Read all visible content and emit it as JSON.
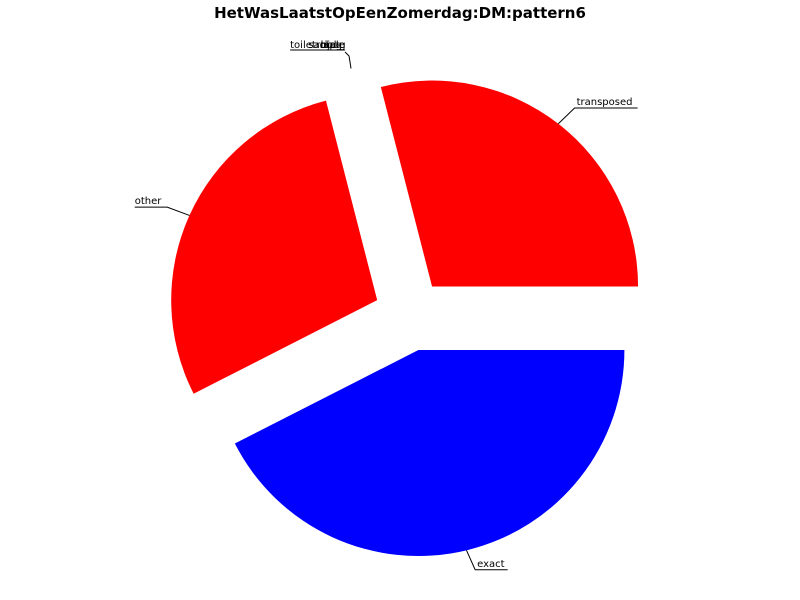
{
  "chart_data": {
    "type": "pie",
    "title": "HetWasLaatstOpEenZomerdag:DM:pattern6",
    "slices": [
      {
        "label": "exact",
        "value": 42.5,
        "color": "#0000ff"
      },
      {
        "label": "other",
        "value": 28.5,
        "color": "#ff0000"
      },
      {
        "label": "transposed",
        "value": 29.0,
        "color": "#ff0000"
      },
      {
        "label": "toiletrol",
        "value": 0,
        "color": "#ff0000"
      },
      {
        "label": "sample",
        "value": 0,
        "color": "#ff0000"
      },
      {
        "label": "hoog",
        "value": 0,
        "color": "#ff0000"
      },
      {
        "label": "laag",
        "value": 0,
        "color": "#ff0000"
      },
      {
        "label": "tijd",
        "value": 0,
        "color": "#ff0000"
      }
    ]
  }
}
